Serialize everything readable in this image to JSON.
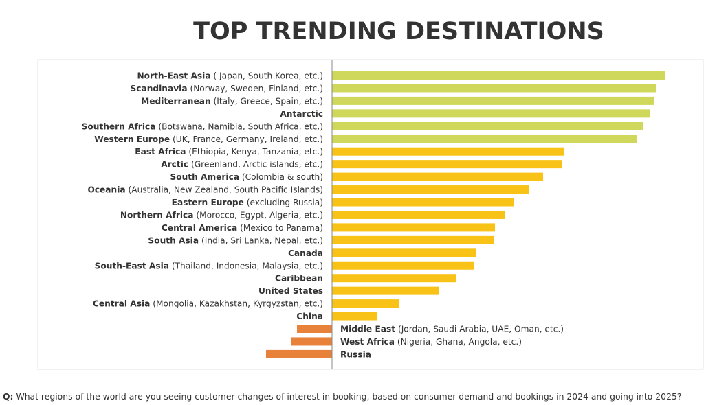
{
  "chart_data": {
    "type": "bar",
    "orientation": "horizontal",
    "title": "TOP TRENDING DESTINATIONS",
    "categories": [
      "North-East Asia",
      "Scandinavia",
      "Mediterranean",
      "Antarctic",
      "Southern Africa",
      "Western Europe",
      "East Africa",
      "Arctic",
      "South America",
      "Oceania",
      "Eastern Europe",
      "Northern Africa",
      "Central America",
      "South Asia",
      "Canada",
      "South-East Asia",
      "Caribbean",
      "United States",
      "Central Asia",
      "China",
      "Middle East",
      "West Africa",
      "Russia"
    ],
    "category_details": [
      "( Japan, South Korea, etc.)",
      "(Norway, Sweden, Finland, etc.)",
      "(Italy, Greece, Spain, etc.)",
      null,
      " (Botswana, Namibia, South Africa, etc.)",
      "(UK, France, Germany, Ireland, etc.)",
      "(Ethiopia, Kenya, Tanzania, etc.)",
      "(Greenland, Arctic islands, etc.)",
      "(Colombia & south)",
      "(Australia, New Zealand, South Pacific Islands)",
      "(excluding Russia)",
      "(Morocco, Egypt, Algeria, etc.)",
      "(Mexico to Panama)",
      "(India, Sri Lanka, Nepal, etc.)",
      null,
      "(Thailand, Indonesia, Malaysia, etc.)",
      null,
      null,
      "(Mongolia, Kazakhstan, Kyrgyzstan, etc.)",
      null,
      "(Jordan, Saudi Arabia, UAE, Oman, etc.)",
      "(Nigeria, Ghana, Angola, etc.)",
      null
    ],
    "values": [
      484,
      471,
      468,
      462,
      453,
      443,
      338,
      334,
      307,
      286,
      264,
      252,
      237,
      236,
      209,
      207,
      180,
      156,
      98,
      66,
      -51,
      -60,
      -96
    ],
    "colors": [
      "#cfd85a",
      "#cfd85a",
      "#cfd85a",
      "#cfd85a",
      "#cfd85a",
      "#cfd85a",
      "#f8c316",
      "#f8c316",
      "#f8c316",
      "#f8c316",
      "#f8c316",
      "#f8c316",
      "#f8c316",
      "#f8c316",
      "#f8c316",
      "#f8c316",
      "#f8c316",
      "#f8c316",
      "#f8c316",
      "#f8c316",
      "#e8813a",
      "#e8813a",
      "#e8813a"
    ],
    "footnote_prefix": "Q:",
    "footnote": " What regions of the world are you seeing customer changes of interest in booking, based on consumer demand and bookings in 2024 and going into 2025?"
  }
}
